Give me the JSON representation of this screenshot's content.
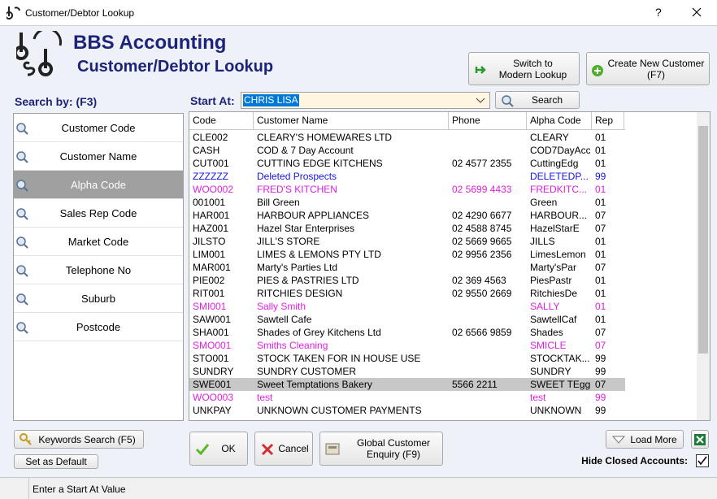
{
  "window": {
    "title": "Customer/Debtor Lookup",
    "help_button": "?"
  },
  "header": {
    "app_name": "BBS Accounting",
    "subtitle": "Customer/Debtor Lookup"
  },
  "top_buttons": {
    "switch": "Switch to Modern Lookup",
    "create": "Create New Customer (F7)"
  },
  "search_by": {
    "label": "Search by: (F3)",
    "options": [
      {
        "label": "Customer Code"
      },
      {
        "label": "Customer Name"
      },
      {
        "label": "Alpha Code",
        "selected": true
      },
      {
        "label": "Sales Rep Code"
      },
      {
        "label": "Market Code"
      },
      {
        "label": "Telephone No"
      },
      {
        "label": "Suburb"
      },
      {
        "label": "Postcode"
      }
    ]
  },
  "start_at": {
    "label": "Start At:",
    "value": "CHRIS LISA",
    "search_button": "Search"
  },
  "table": {
    "headers": [
      "Code",
      "Customer Name",
      "Phone",
      "Alpha Code",
      "Rep"
    ],
    "rows": [
      {
        "code": "CLE002",
        "name": "CLEARY'S HOMEWARES LTD",
        "alpha": "CLEARY",
        "rep": "01"
      },
      {
        "code": "CASH",
        "name": "COD & 7 Day Account",
        "alpha": "COD7DayAcc",
        "rep": "01"
      },
      {
        "code": "CUT001",
        "name": "CUTTING EDGE KITCHENS",
        "phone": "02 4577 2355",
        "alpha": "CuttingEdg",
        "rep": "01"
      },
      {
        "code": "ZZZZZZ",
        "name": "Deleted Prospects",
        "alpha": "DELETEDP...",
        "rep": "99",
        "color": "#1414e0"
      },
      {
        "code": "WOO002",
        "name": "FRED'S KITCHEN",
        "phone": "02 5699 4433",
        "alpha": "FREDKITC...",
        "rep": "01",
        "color": "#e020e0"
      },
      {
        "code": "001001",
        "name": "Bill Green",
        "alpha": "Green",
        "rep": "01"
      },
      {
        "code": "HAR001",
        "name": "HARBOUR APPLIANCES",
        "phone": "02 4290 6677",
        "alpha": "HARBOUR...",
        "rep": "07"
      },
      {
        "code": "HAZ001",
        "name": "Hazel Star Enterprises",
        "phone": "02 4588 8745",
        "alpha": "HazelStarE",
        "rep": "07"
      },
      {
        "code": "JILSTO",
        "name": "JILL'S STORE",
        "phone": "02 5669 9665",
        "alpha": "JILLS",
        "rep": "01"
      },
      {
        "code": "LIM001",
        "name": "LIMES & LEMONS PTY LTD",
        "phone": "02 9956 2356",
        "alpha": "LimesLemon",
        "rep": "01"
      },
      {
        "code": "MAR001",
        "name": "Marty's Parties Ltd",
        "alpha": "Marty'sPar",
        "rep": "07"
      },
      {
        "code": "PIE002",
        "name": "PIES & PASTRIES LTD",
        "phone": "02 369 4563",
        "alpha": "PiesPastr",
        "rep": "01"
      },
      {
        "code": "RIT001",
        "name": "RITCHIES DESIGN",
        "phone": "02 9550 2669",
        "alpha": "RitchiesDe",
        "rep": "01"
      },
      {
        "code": "SMI001",
        "name": "Sally Smith",
        "alpha": "SALLY",
        "rep": "01",
        "color": "#e020e0"
      },
      {
        "code": "SAW001",
        "name": "Sawtell Cafe",
        "alpha": "SawtellCaf",
        "rep": "01"
      },
      {
        "code": "SHA001",
        "name": "Shades of Grey Kitchens Ltd",
        "phone": "02 6566 9859",
        "alpha": "Shades",
        "rep": "07"
      },
      {
        "code": "SMO001",
        "name": "Smiths Cleaning",
        "alpha": "SMICLE",
        "rep": "07",
        "color": "#e020e0"
      },
      {
        "code": "STO001",
        "name": "STOCK TAKEN FOR IN HOUSE USE",
        "alpha": "STOCKTAK...",
        "rep": "99"
      },
      {
        "code": "SUNDRY",
        "name": "SUNDRY CUSTOMER",
        "alpha": "SUNDRY",
        "rep": "99"
      },
      {
        "code": "SWE001",
        "name": "Sweet Temptations Bakery",
        "phone": "5566 2211",
        "alpha": "SWEET TEgg",
        "rep": "07",
        "selected": true
      },
      {
        "code": "WOO003",
        "name": "test",
        "alpha": "test",
        "rep": "99",
        "color": "#e020e0"
      },
      {
        "code": "UNKPAY",
        "name": "UNKNOWN CUSTOMER PAYMENTS",
        "alpha": "UNKNOWN",
        "rep": "99"
      }
    ]
  },
  "bottom": {
    "keywords": "Keywords Search (F5)",
    "set_default": "Set as Default",
    "ok": "OK",
    "cancel": "Cancel",
    "global": "Global Customer Enquiry (F9)",
    "load_more": "Load More",
    "hide_closed": "Hide Closed Accounts:",
    "hide_closed_checked": true
  },
  "status": "Enter a Start At Value"
}
